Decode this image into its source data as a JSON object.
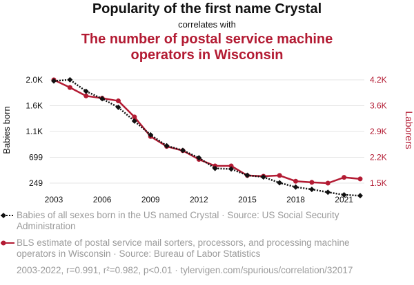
{
  "title": "Popularity of the first name Crystal",
  "connector": "correlates with",
  "subtitle": "The number of postal service machine operators in Wisconsin",
  "colors": {
    "series_a": "#111111",
    "series_b": "#b31b33",
    "legend_text": "#9a9a9a"
  },
  "legend": {
    "a": "Babies of all sexes born in the US named Crystal · Source: US Social Security Administration",
    "b": "BLS estimate of postal service mail sorters, processors, and processing machine operators in Wisconsin · Source: Bureau of Labor Statistics"
  },
  "footer": "2003-2022, r=0.991, r²=0.982, p<0.01 · tylervigen.com/spurious/correlation/32017",
  "chart_data": {
    "type": "line",
    "x": [
      2003,
      2004,
      2005,
      2006,
      2007,
      2008,
      2009,
      2010,
      2011,
      2012,
      2013,
      2014,
      2015,
      2016,
      2017,
      2018,
      2019,
      2020,
      2021,
      2022
    ],
    "x_ticks": [
      "2003",
      "2006",
      "2009",
      "2012",
      "2015",
      "2018",
      "2021"
    ],
    "left_axis": {
      "label": "Babies born",
      "tick_labels": [
        "249",
        "699",
        "1.1K",
        "1.6K",
        "2.0K"
      ],
      "tick_values": [
        249,
        699,
        1149,
        1599,
        2049
      ],
      "range": [
        249,
        2049
      ]
    },
    "right_axis": {
      "label": "Laborers",
      "tick_labels": [
        "1.5K",
        "2.2K",
        "2.9K",
        "3.6K",
        "4.2K"
      ],
      "tick_values": [
        1500,
        2175,
        2850,
        3525,
        4200
      ],
      "range": [
        1500,
        4200
      ]
    },
    "series": [
      {
        "name": "Babies of all sexes born in the US named Crystal",
        "axis": "left",
        "marker": "diamond",
        "dash": "dotted",
        "values": [
          2030,
          2050,
          1850,
          1720,
          1570,
          1330,
          1090,
          900,
          820,
          690,
          505,
          495,
          385,
          355,
          255,
          180,
          140,
          90,
          45,
          30
        ]
      },
      {
        "name": "BLS estimate of postal service mail sorters, processors, and processing machine operators in Wisconsin",
        "axis": "right",
        "marker": "circle",
        "dash": "solid",
        "values": [
          4200,
          4000,
          3780,
          3720,
          3650,
          3230,
          2720,
          2460,
          2350,
          2120,
          1950,
          1950,
          1700,
          1680,
          1700,
          1550,
          1520,
          1500,
          1650,
          1610
        ]
      }
    ],
    "grid": "horizontal"
  }
}
